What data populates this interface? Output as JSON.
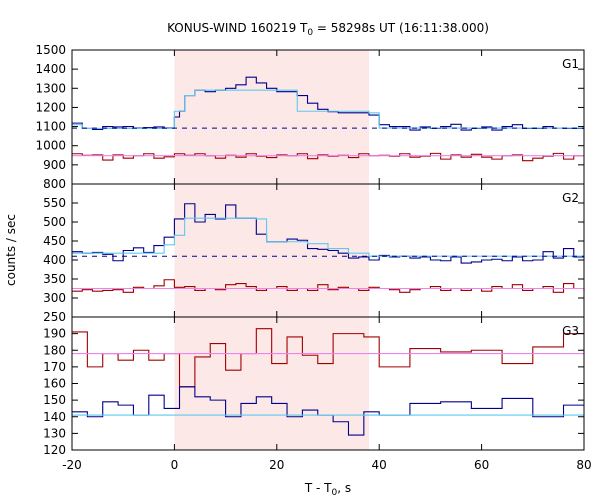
{
  "chart_data": {
    "type": "line",
    "title": "KONUS-WIND 160219 T0 = 58298s UT (16:11:38.000)",
    "title_parts": [
      "KONUS-WIND 160219 T",
      "0",
      " = 58298s UT (16:11:38.000)"
    ],
    "xlabel": "T - T0, s",
    "xlabel_parts": [
      "T - T",
      "0",
      ", s"
    ],
    "ylabel": "counts / sec",
    "xlim": [
      -20,
      80
    ],
    "x_ticks": [
      -20,
      0,
      20,
      40,
      60,
      80
    ],
    "highlight_interval": [
      0,
      38
    ],
    "colors": {
      "highlight": "#fde8e8",
      "blue_data": "#00008b",
      "light_blue_fit": "#5ec8f0",
      "red_data": "#a00000",
      "pink_fit": "#ee82ee",
      "background_dashed": "#00008b",
      "frame": "#000000"
    },
    "panels": [
      {
        "label": "G1",
        "ylim": [
          800,
          1500
        ],
        "y_ticks": [
          800,
          900,
          1000,
          1100,
          1200,
          1300,
          1400,
          1500
        ],
        "background_level": 1092,
        "series": [
          {
            "role": "blue_data",
            "edges": [
              -20,
              -18,
              -16,
              -14,
              -12,
              -10,
              -8,
              -6,
              -4,
              -2,
              0,
              1,
              2,
              4,
              6,
              8,
              10,
              12,
              14,
              16,
              18,
              20,
              22,
              24,
              26,
              28,
              30,
              32,
              34,
              36,
              38,
              40,
              42,
              44,
              46,
              48,
              50,
              52,
              54,
              56,
              58,
              60,
              62,
              64,
              66,
              68,
              70,
              72,
              74,
              76,
              78,
              80
            ],
            "values": [
              1118,
              1090,
              1085,
              1100,
              1098,
              1100,
              1092,
              1095,
              1098,
              1092,
              1150,
              1180,
              1262,
              1290,
              1282,
              1290,
              1300,
              1318,
              1358,
              1328,
              1300,
              1282,
              1282,
              1262,
              1222,
              1190,
              1178,
              1172,
              1172,
              1172,
              1160,
              1110,
              1100,
              1100,
              1082,
              1098,
              1090,
              1100,
              1112,
              1082,
              1090,
              1098,
              1082,
              1100,
              1110,
              1090,
              1090,
              1100,
              1092,
              1090,
              1090
            ]
          },
          {
            "role": "light_blue_fit",
            "edges": [
              -20,
              -18,
              0,
              2,
              4,
              24,
              26,
              38,
              40,
              80
            ],
            "values": [
              1110,
              1090,
              1180,
              1262,
              1290,
              1180,
              1180,
              1172,
              1092
            ]
          },
          {
            "role": "red_data",
            "edges": [
              -20,
              -18,
              -16,
              -14,
              -12,
              -10,
              -8,
              -6,
              -4,
              -2,
              0,
              2,
              4,
              6,
              8,
              10,
              12,
              14,
              16,
              18,
              20,
              22,
              24,
              26,
              28,
              30,
              32,
              34,
              36,
              38,
              40,
              42,
              44,
              46,
              48,
              50,
              52,
              54,
              56,
              58,
              60,
              62,
              64,
              66,
              68,
              70,
              72,
              74,
              76,
              78,
              80
            ],
            "values": [
              958,
              950,
              952,
              925,
              952,
              935,
              948,
              958,
              935,
              942,
              958,
              950,
              958,
              948,
              935,
              950,
              940,
              958,
              945,
              938,
              952,
              948,
              958,
              932,
              952,
              945,
              950,
              938,
              958,
              948,
              950,
              945,
              958,
              940,
              945,
              960,
              930,
              952,
              940,
              955,
              940,
              930,
              948,
              952,
              922,
              935,
              945,
              960,
              930,
              948
            ]
          },
          {
            "role": "pink_fit",
            "edges": [
              -20,
              80
            ],
            "values": [
              948
            ]
          }
        ]
      },
      {
        "label": "G2",
        "ylim": [
          250,
          600
        ],
        "y_ticks": [
          250,
          300,
          350,
          400,
          450,
          500,
          550
        ],
        "background_level": 410,
        "series": [
          {
            "role": "blue_data",
            "edges": [
              -20,
              -18,
              -16,
              -14,
              -12,
              -10,
              -8,
              -6,
              -4,
              -2,
              0,
              2,
              4,
              6,
              8,
              10,
              12,
              14,
              16,
              18,
              20,
              22,
              24,
              26,
              28,
              30,
              32,
              34,
              36,
              38,
              40,
              42,
              44,
              46,
              48,
              50,
              52,
              54,
              56,
              58,
              60,
              62,
              64,
              66,
              68,
              70,
              72,
              74,
              76,
              78,
              80
            ],
            "values": [
              422,
              418,
              420,
              415,
              398,
              425,
              432,
              420,
              438,
              460,
              508,
              548,
              500,
              520,
              508,
              545,
              510,
              510,
              468,
              448,
              448,
              455,
              452,
              430,
              428,
              425,
              418,
              405,
              408,
              400,
              412,
              408,
              410,
              405,
              408,
              400,
              398,
              408,
              392,
              395,
              400,
              402,
              398,
              408,
              398,
              400,
              422,
              405,
              430,
              408,
              410
            ]
          },
          {
            "role": "light_blue_fit",
            "edges": [
              -20,
              -18,
              -2,
              0,
              2,
              14,
              16,
              18,
              24,
              26,
              30,
              34,
              38,
              80
            ],
            "values": [
              418,
              418,
              440,
              465,
              510,
              510,
              508,
              448,
              448,
              443,
              430,
              418,
              410
            ]
          },
          {
            "role": "red_data",
            "edges": [
              -20,
              -18,
              -16,
              -14,
              -12,
              -10,
              -8,
              -6,
              -4,
              -2,
              0,
              2,
              4,
              6,
              8,
              10,
              12,
              14,
              16,
              18,
              20,
              22,
              24,
              26,
              28,
              30,
              32,
              34,
              36,
              38,
              40,
              42,
              44,
              46,
              48,
              50,
              52,
              54,
              56,
              58,
              60,
              62,
              64,
              66,
              68,
              70,
              72,
              74,
              76,
              78,
              80
            ],
            "values": [
              318,
              322,
              318,
              320,
              322,
              315,
              328,
              325,
              332,
              348,
              328,
              330,
              320,
              325,
              322,
              335,
              338,
              330,
              320,
              325,
              330,
              320,
              325,
              320,
              335,
              322,
              328,
              325,
              320,
              328,
              325,
              322,
              315,
              322,
              325,
              330,
              320,
              325,
              320,
              325,
              318,
              330,
              325,
              335,
              320,
              325,
              330,
              315,
              338,
              325,
              318
            ]
          },
          {
            "role": "pink_fit",
            "edges": [
              -20,
              80
            ],
            "values": [
              325
            ]
          }
        ]
      },
      {
        "label": "G3",
        "ylim": [
          120,
          200
        ],
        "y_ticks": [
          120,
          130,
          140,
          150,
          160,
          170,
          180,
          190
        ],
        "background_level": 141,
        "series": [
          {
            "role": "red_data",
            "edges": [
              -20,
              -17,
              -14,
              -11,
              -8,
              -5,
              -2,
              1,
              4,
              7,
              10,
              13,
              16,
              19,
              22,
              25,
              28,
              31,
              34,
              37,
              40,
              46,
              52,
              58,
              64,
              70,
              76,
              80
            ],
            "values": [
              191,
              170,
              178,
              174,
              180,
              174,
              178,
              158,
              176,
              184,
              168,
              178,
              193,
              172,
              188,
              177,
              172,
              190,
              190,
              188,
              170,
              181,
              179,
              180,
              172,
              182,
              190
            ]
          },
          {
            "role": "pink_fit",
            "edges": [
              -20,
              80
            ],
            "values": [
              178
            ]
          },
          {
            "role": "blue_data",
            "edges": [
              -20,
              -17,
              -14,
              -11,
              -8,
              -5,
              -2,
              1,
              4,
              7,
              10,
              13,
              16,
              19,
              22,
              25,
              28,
              31,
              34,
              37,
              40,
              46,
              52,
              58,
              64,
              70,
              76,
              80
            ],
            "values": [
              143,
              140,
              149,
              147,
              141,
              153,
              145,
              158,
              152,
              150,
              140,
              148,
              152,
              148,
              140,
              144,
              141,
              137,
              129,
              143,
              141,
              148,
              149,
              145,
              151,
              140,
              147
            ]
          },
          {
            "role": "light_blue_fit",
            "edges": [
              -20,
              80
            ],
            "values": [
              141
            ]
          }
        ]
      }
    ]
  }
}
